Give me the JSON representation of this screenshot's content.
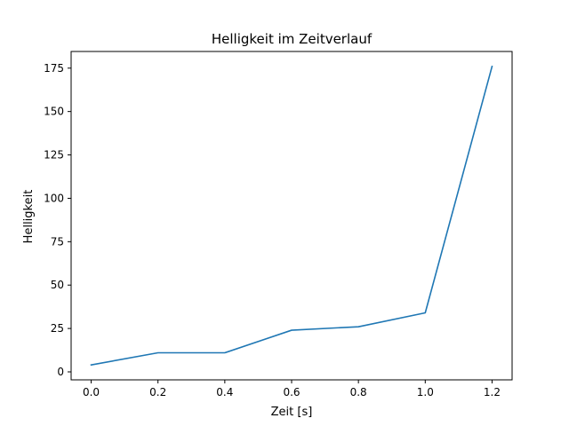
{
  "chart_data": {
    "type": "line",
    "title": "Helligkeit im Zeitverlauf",
    "xlabel": "Zeit [s]",
    "ylabel": "Helligkeit",
    "x": [
      0.0,
      0.2,
      0.4,
      0.6,
      0.8,
      1.0,
      1.2
    ],
    "series": [
      {
        "values": [
          4,
          11,
          11,
          24,
          26,
          34,
          176
        ]
      }
    ],
    "xlim": [
      -0.06,
      1.26
    ],
    "ylim": [
      -4.6,
      184.6
    ],
    "xticks": [
      0.0,
      0.2,
      0.4,
      0.6,
      0.8,
      1.0,
      1.2
    ],
    "xtick_labels": [
      "0.0",
      "0.2",
      "0.4",
      "0.6",
      "0.8",
      "1.0",
      "1.2"
    ],
    "yticks": [
      0,
      25,
      50,
      75,
      100,
      125,
      150,
      175
    ],
    "ytick_labels": [
      "0",
      "25",
      "50",
      "75",
      "100",
      "125",
      "150",
      "175"
    ],
    "grid": false,
    "colors": {
      "series": "#1f77b4"
    }
  }
}
